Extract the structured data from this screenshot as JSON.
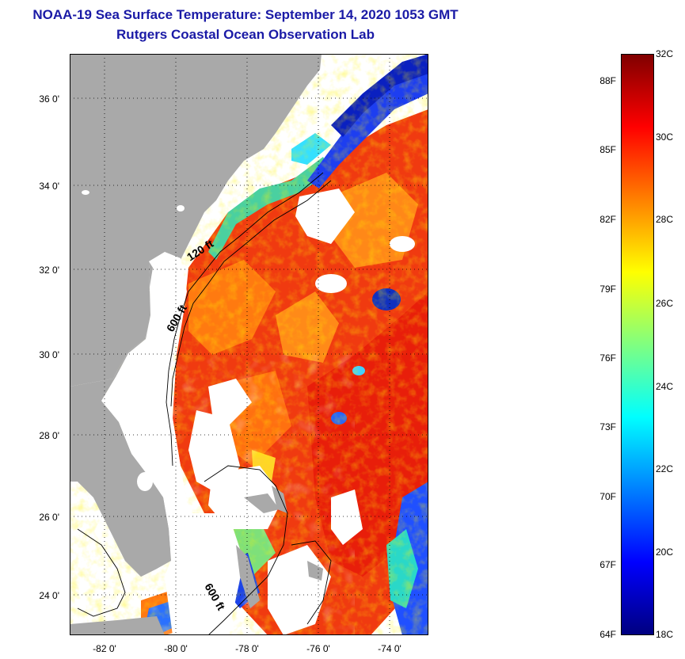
{
  "title": {
    "line1": "NOAA-19 Sea Surface Temperature:  September 14, 2020 1053 GMT",
    "line2": "Rutgers Coastal Ocean Observation Lab"
  },
  "map": {
    "lat_ticks": [
      "36 0'",
      "34 0'",
      "32 0'",
      "30 0'",
      "28 0'",
      "26 0'",
      "24 0'"
    ],
    "lon_ticks": [
      "-82 0'",
      "-80 0'",
      "-78 0'",
      "-76 0'",
      "-74 0'"
    ],
    "contour_labels": [
      "120 ft",
      "600 ft",
      "600 ft"
    ],
    "colors": {
      "land": "#a9a9a9",
      "no_data": "#ffffff"
    }
  },
  "colorbar": {
    "fahrenheit": [
      "88F",
      "85F",
      "82F",
      "79F",
      "76F",
      "73F",
      "70F",
      "67F",
      "64F"
    ],
    "celsius": [
      "32C",
      "30C",
      "28C",
      "26C",
      "24C",
      "22C",
      "20C",
      "18C"
    ],
    "gradient": [
      "#800000",
      "#ff0000",
      "#ff8000",
      "#ffff00",
      "#80ff80",
      "#00ffff",
      "#0080ff",
      "#0000ff",
      "#000080"
    ]
  }
}
